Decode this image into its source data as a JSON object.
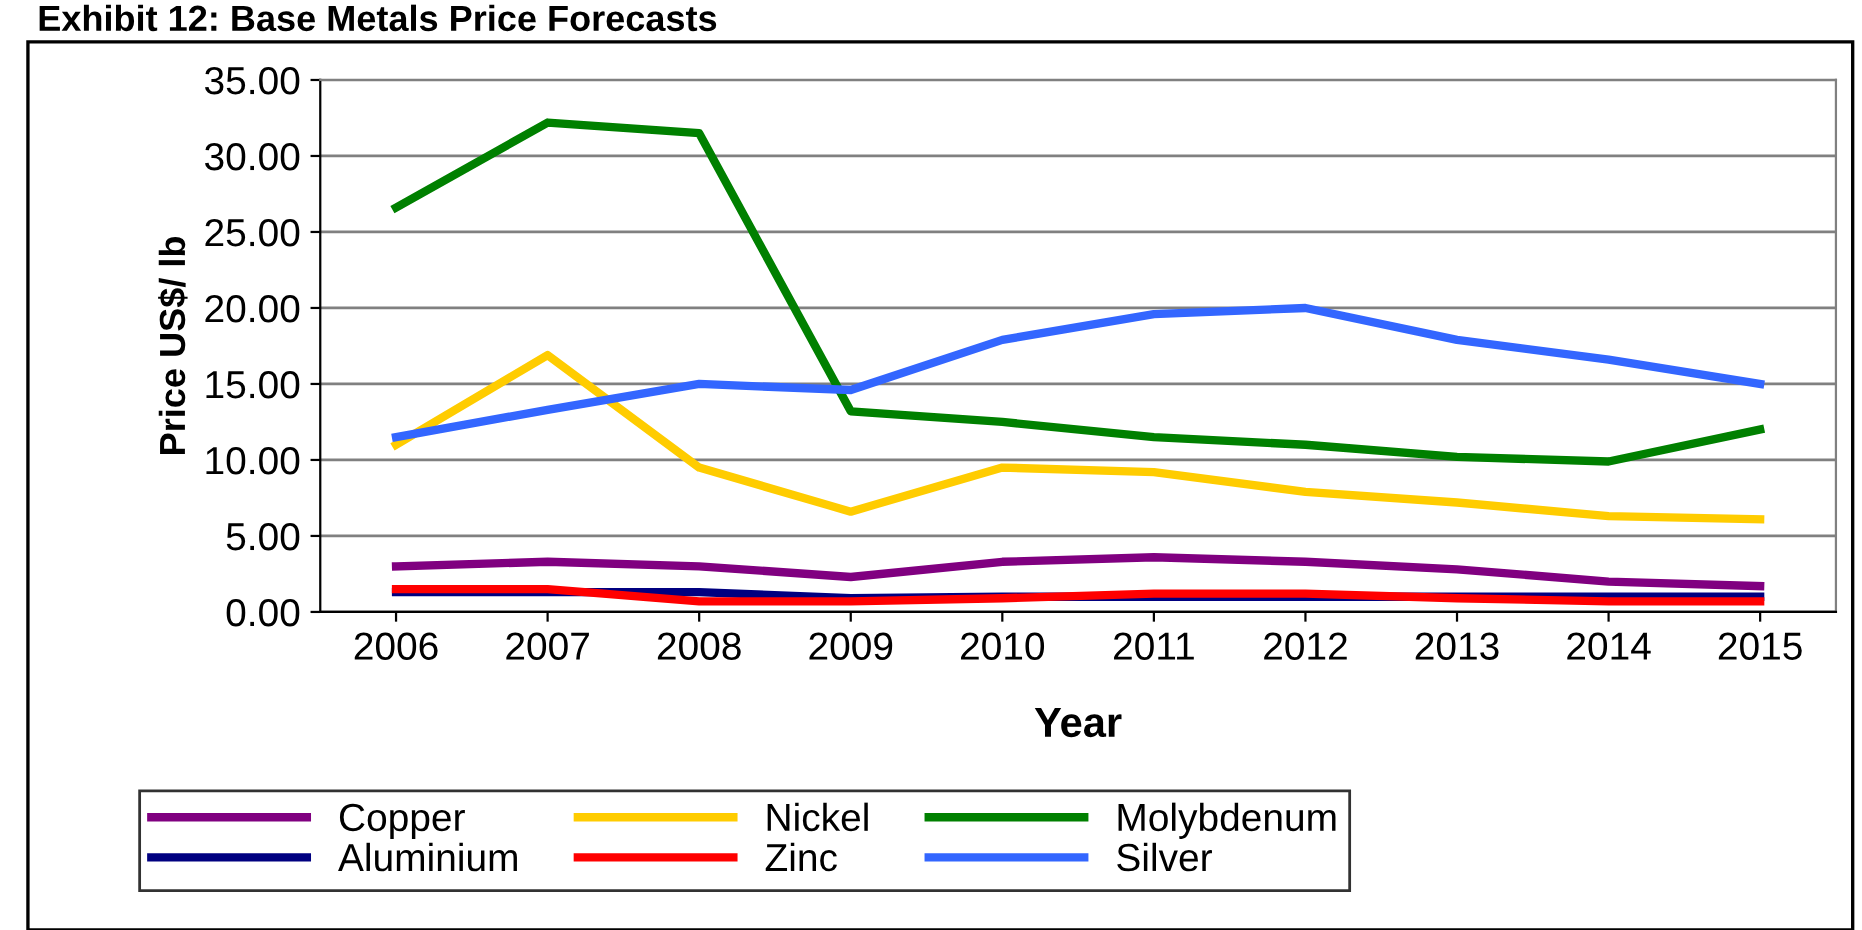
{
  "chart_data": {
    "type": "line",
    "title": "Exhibit 12: Base Metals Price Forecasts",
    "xlabel": "Year",
    "ylabel": "Price US$/ lb",
    "categories": [
      "2006",
      "2007",
      "2008",
      "2009",
      "2010",
      "2011",
      "2012",
      "2013",
      "2014",
      "2015"
    ],
    "series": [
      {
        "name": "Copper",
        "color": "#800080",
        "values": [
          3.0,
          3.3,
          3.0,
          2.3,
          3.3,
          3.6,
          3.3,
          2.8,
          2.0,
          1.7
        ]
      },
      {
        "name": "Aluminium",
        "color": "#000080",
        "values": [
          1.3,
          1.3,
          1.3,
          0.9,
          1.0,
          1.0,
          1.0,
          1.0,
          1.0,
          1.0
        ]
      },
      {
        "name": "Nickel",
        "color": "#ffcc00",
        "values": [
          11.0,
          16.9,
          9.5,
          6.6,
          9.5,
          9.2,
          7.9,
          7.2,
          6.3,
          6.1
        ]
      },
      {
        "name": "Zinc",
        "color": "#ff0000",
        "values": [
          1.5,
          1.5,
          0.7,
          0.7,
          0.9,
          1.2,
          1.2,
          0.9,
          0.7,
          0.7
        ]
      },
      {
        "name": "Molybdenum",
        "color": "#008000",
        "values": [
          26.6,
          32.2,
          31.5,
          13.2,
          12.5,
          11.5,
          11.0,
          10.2,
          9.9,
          12.0
        ]
      },
      {
        "name": "Silver",
        "color": "#3366ff",
        "values": [
          11.5,
          13.3,
          15.0,
          14.6,
          17.9,
          19.6,
          20.0,
          17.9,
          16.6,
          15.0
        ]
      }
    ],
    "ylim": [
      0,
      35
    ],
    "yticks": [
      {
        "value": 0,
        "label": "0.00"
      },
      {
        "value": 5,
        "label": "5.00"
      },
      {
        "value": 10,
        "label": "10.00"
      },
      {
        "value": 15,
        "label": "15.00"
      },
      {
        "value": 20,
        "label": "20.00"
      },
      {
        "value": 25,
        "label": "25.00"
      },
      {
        "value": 30,
        "label": "30.00"
      },
      {
        "value": 35,
        "label": "35.00"
      }
    ],
    "grid": "y",
    "legend": "bottom",
    "marker": "none",
    "line_style": "solid"
  }
}
